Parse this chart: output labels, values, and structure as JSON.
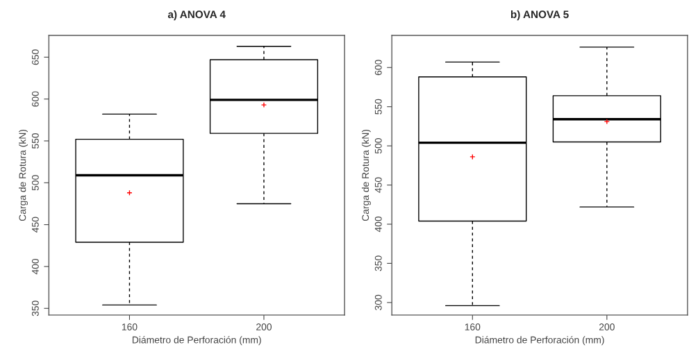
{
  "chart_data": [
    {
      "type": "box",
      "title": "a) ANOVA 4",
      "xlabel": "Diámetro de Perforación (mm)",
      "ylabel": "Carga de Rotura (kN)",
      "categories": [
        "160",
        "200"
      ],
      "ylim": [
        342,
        676
      ],
      "yticks": [
        350,
        400,
        450,
        500,
        550,
        600,
        650
      ],
      "grid": false,
      "legend": false,
      "boxes": [
        {
          "low": 354,
          "q1": 429,
          "median": 509,
          "q3": 552,
          "high": 582,
          "mean": 488
        },
        {
          "low": 475,
          "q1": 559,
          "median": 599,
          "q3": 647,
          "high": 663,
          "mean": 593
        }
      ]
    },
    {
      "type": "box",
      "title": "b) ANOVA 5",
      "xlabel": "Diámetro de Perforación (mm)",
      "ylabel": "Carga de Rotura (kN)",
      "categories": [
        "160",
        "200"
      ],
      "ylim": [
        284,
        641
      ],
      "yticks": [
        300,
        350,
        400,
        450,
        500,
        550,
        600
      ],
      "grid": false,
      "legend": false,
      "boxes": [
        {
          "low": 296,
          "q1": 404,
          "median": 504,
          "q3": 588,
          "high": 607,
          "mean": 486
        },
        {
          "low": 422,
          "q1": 505,
          "median": 534,
          "q3": 564,
          "high": 626,
          "mean": 531
        }
      ]
    }
  ]
}
